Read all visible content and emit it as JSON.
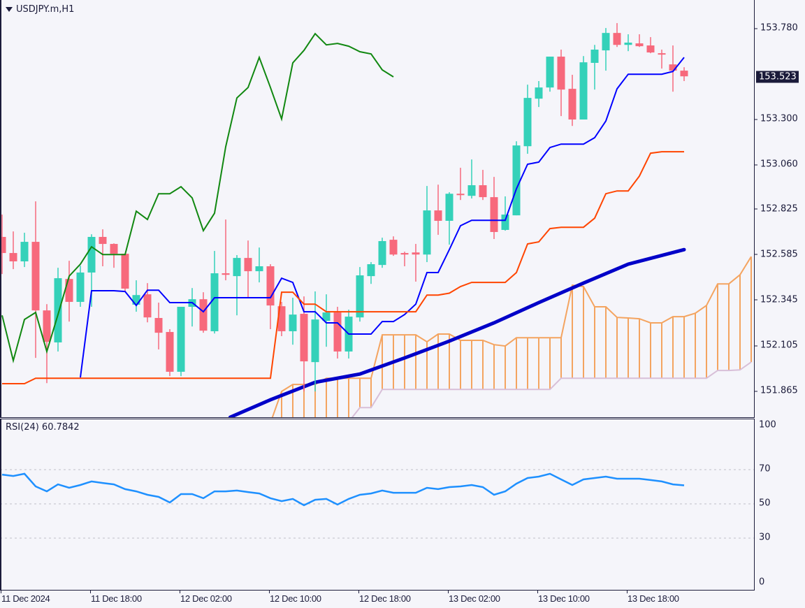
{
  "header": {
    "symbol_title": "USDJPY.m,H1"
  },
  "colors": {
    "bull": "#34d1b9",
    "bear": "#f7697c",
    "tenkan": "#0000ff",
    "kijun": "#ff4500",
    "chikou": "#118811",
    "ma": "#0000c8",
    "senkou_a": "#f4a460",
    "senkou_b": "#d8bfd8",
    "rsi": "#1e90ff",
    "grid": "#c0c0c8",
    "axis": "#1b1b3a"
  },
  "chart_data": [
    {
      "type": "candlestick",
      "title": "USDJPY.m,H1",
      "timeframe": "H1",
      "ylim": [
        151.725,
        153.928
      ],
      "y_tick_labels": [
        "153.780",
        "153.300",
        "153.060",
        "152.825",
        "152.585",
        "152.345",
        "152.105",
        "151.865"
      ],
      "y_tick_values": [
        153.78,
        153.3,
        153.06,
        152.825,
        152.585,
        152.345,
        152.105,
        151.865
      ],
      "current_price": "153.523",
      "current_price_value": 153.523,
      "x_tick_labels": [
        "11 Dec 2024",
        "11 Dec 18:00",
        "12 Dec 02:00",
        "12 Dec 10:00",
        "12 Dec 18:00",
        "13 Dec 02:00",
        "13 Dec 10:00",
        "13 Dec 18:00"
      ],
      "x_tick_bars": [
        0,
        8,
        16,
        24,
        32,
        40,
        48,
        56
      ],
      "candles_ohlc": [
        [
          152.677,
          152.795,
          152.481,
          152.592
        ],
        [
          152.592,
          152.706,
          152.507,
          152.548
        ],
        [
          152.548,
          152.699,
          152.518,
          152.651
        ],
        [
          152.651,
          152.865,
          152.038,
          152.289
        ],
        [
          152.289,
          152.322,
          151.905,
          152.123
        ],
        [
          152.12,
          152.514,
          152.072,
          152.459
        ],
        [
          152.455,
          152.551,
          152.23,
          152.334
        ],
        [
          152.334,
          152.525,
          152.308,
          152.489
        ],
        [
          152.489,
          152.691,
          152.308,
          152.677
        ],
        [
          152.677,
          152.717,
          152.522,
          152.64
        ],
        [
          152.64,
          152.643,
          152.514,
          152.588
        ],
        [
          152.588,
          152.588,
          152.389,
          152.404
        ],
        [
          152.319,
          152.448,
          152.282,
          152.37
        ],
        [
          152.374,
          152.433,
          152.226,
          152.252
        ],
        [
          152.249,
          152.33,
          152.083,
          152.171
        ],
        [
          152.175,
          152.19,
          151.942,
          151.965
        ],
        [
          151.965,
          152.308,
          151.942,
          152.308
        ],
        [
          152.308,
          152.407,
          152.204,
          152.348
        ],
        [
          152.348,
          152.385,
          152.171,
          152.182
        ],
        [
          152.179,
          152.603,
          152.167,
          152.485
        ],
        [
          152.485,
          152.769,
          152.448,
          152.477
        ],
        [
          152.47,
          152.581,
          152.263,
          152.566
        ],
        [
          152.566,
          152.658,
          152.356,
          152.496
        ],
        [
          152.496,
          152.621,
          152.437,
          152.522
        ],
        [
          152.522,
          152.533,
          152.19,
          152.315
        ],
        [
          152.311,
          152.334,
          152.153,
          152.179
        ],
        [
          152.179,
          152.356,
          152.108,
          152.267
        ],
        [
          152.271,
          152.363,
          151.861,
          152.02
        ],
        [
          152.016,
          152.389,
          151.861,
          152.241
        ],
        [
          152.234,
          152.374,
          152.097,
          152.278
        ],
        [
          152.278,
          152.308,
          152.035,
          152.072
        ],
        [
          152.072,
          152.293,
          152.035,
          152.256
        ],
        [
          152.252,
          152.518,
          152.23,
          152.474
        ],
        [
          152.47,
          152.544,
          152.429,
          152.533
        ],
        [
          152.529,
          152.673,
          152.514,
          152.655
        ],
        [
          152.662,
          152.68,
          152.577,
          152.584
        ],
        [
          152.592,
          152.599,
          152.522,
          152.584
        ],
        [
          152.595,
          152.64,
          152.441,
          152.584
        ],
        [
          152.584,
          152.946,
          152.544,
          152.817
        ],
        [
          152.817,
          152.953,
          152.688,
          152.762
        ],
        [
          152.762,
          152.913,
          152.636,
          152.905
        ],
        [
          152.905,
          153.042,
          152.872,
          152.898
        ],
        [
          152.894,
          153.086,
          152.88,
          152.95
        ],
        [
          152.95,
          153.031,
          152.872,
          152.887
        ],
        [
          152.887,
          152.994,
          152.666,
          152.703
        ],
        [
          152.714,
          152.891,
          152.71,
          152.795
        ],
        [
          152.791,
          153.182,
          152.791,
          153.16
        ],
        [
          153.156,
          153.481,
          153.116,
          153.411
        ],
        [
          153.407,
          153.5,
          153.363,
          153.466
        ],
        [
          153.466,
          153.629,
          153.444,
          153.629
        ],
        [
          153.629,
          153.666,
          153.315,
          153.455
        ],
        [
          153.459,
          153.533,
          153.263,
          153.297
        ],
        [
          153.297,
          153.632,
          153.297,
          153.599
        ],
        [
          153.596,
          153.691,
          153.455,
          153.666
        ],
        [
          153.662,
          153.78,
          153.555,
          153.754
        ],
        [
          153.754,
          153.806,
          153.68,
          153.691
        ],
        [
          153.691,
          153.747,
          153.658,
          153.703
        ],
        [
          153.699,
          153.747,
          153.68,
          153.684
        ],
        [
          153.688,
          153.732,
          153.647,
          153.651
        ],
        [
          153.647,
          153.666,
          153.566,
          153.64
        ],
        [
          153.588,
          153.688,
          153.444,
          153.555
        ],
        [
          153.555,
          153.573,
          153.5,
          153.525
        ]
      ],
      "series": [
        {
          "name": "chikou-span",
          "start_bar": 0,
          "values": [
            152.263,
            152.024,
            152.241,
            152.278,
            152.072,
            152.267,
            152.47,
            152.533,
            152.625,
            152.584,
            152.584,
            152.584,
            152.813,
            152.769,
            152.905,
            152.905,
            152.942,
            152.883,
            152.71,
            152.802,
            153.153,
            153.411,
            153.466,
            153.625,
            153.466,
            153.3,
            153.596,
            153.662,
            153.75,
            153.691,
            153.699,
            153.684,
            153.655,
            153.643,
            153.559,
            153.522
          ]
        },
        {
          "name": "tenkan-sen",
          "start_bar": 7,
          "values": [
            151.935,
            152.393,
            152.393,
            152.393,
            152.389,
            152.315,
            152.396,
            152.396,
            152.33,
            152.33,
            152.33,
            152.282,
            152.356,
            152.356,
            152.356,
            152.356,
            152.356,
            152.356,
            152.459,
            152.437,
            152.282,
            152.282,
            152.223,
            152.223,
            152.164,
            152.164,
            152.164,
            152.23,
            152.23,
            152.267,
            152.322,
            152.489,
            152.489,
            152.61,
            152.736,
            152.765,
            152.765,
            152.765,
            152.765,
            152.931,
            153.061,
            153.072,
            153.149,
            153.167,
            153.167,
            153.167,
            153.201,
            153.289,
            153.459,
            153.536,
            153.536,
            153.536,
            153.536,
            153.551,
            153.625
          ]
        },
        {
          "name": "kijun-sen",
          "start_bar": 0,
          "values": [
            151.902,
            151.902,
            151.902,
            151.931,
            151.931,
            151.931,
            151.931,
            151.931,
            151.931,
            151.931,
            151.931,
            151.931,
            151.931,
            151.931,
            151.931,
            151.931,
            151.931,
            151.931,
            151.931,
            151.931,
            151.931,
            151.931,
            151.931,
            151.931,
            151.931,
            152.385,
            152.385,
            152.322,
            152.322,
            152.282,
            152.282,
            152.282,
            152.282,
            152.282,
            152.282,
            152.282,
            152.282,
            152.282,
            152.37,
            152.37,
            152.38,
            152.415,
            152.437,
            152.437,
            152.437,
            152.437,
            152.489,
            152.64,
            152.651,
            152.721,
            152.728,
            152.728,
            152.728,
            152.776,
            152.905,
            152.92,
            152.92,
            152.998,
            153.119,
            153.127,
            153.127,
            153.127
          ]
        },
        {
          "name": "moving-average",
          "points": [
            [
              20.4,
              151.725
            ],
            [
              24,
              151.817
            ],
            [
              28,
              151.909
            ],
            [
              32,
              151.953
            ],
            [
              36,
              152.038
            ],
            [
              40,
              152.127
            ],
            [
              44,
              152.223
            ],
            [
              48,
              152.33
            ],
            [
              52,
              152.433
            ],
            [
              56,
              152.533
            ],
            [
              61,
              152.61
            ]
          ]
        }
      ],
      "cloud": {
        "start_bar": 24,
        "senkou_a": [
          151.695,
          151.861,
          151.898,
          151.898,
          151.898,
          151.931,
          151.931,
          151.931,
          151.931,
          151.931,
          152.16,
          152.16,
          152.16,
          152.16,
          152.123,
          152.164,
          152.164,
          152.131,
          152.131,
          152.131,
          152.108,
          152.101,
          152.145,
          152.145,
          152.145,
          152.145,
          152.145,
          152.422,
          152.415,
          152.308,
          152.308,
          152.252,
          152.249,
          152.245,
          152.223,
          152.223,
          152.256,
          152.256,
          152.274,
          152.315,
          152.429,
          152.429,
          152.477,
          152.573
        ],
        "senkou_b": [
          151.55,
          151.58,
          151.6,
          151.62,
          151.64,
          151.66,
          151.68,
          151.7,
          151.776,
          151.776,
          151.872,
          151.872,
          151.872,
          151.872,
          151.872,
          151.872,
          151.872,
          151.872,
          151.872,
          151.872,
          151.872,
          151.872,
          151.872,
          151.872,
          151.872,
          151.872,
          151.931,
          151.931,
          151.931,
          151.931,
          151.931,
          151.931,
          151.931,
          151.931,
          151.931,
          151.931,
          151.931,
          151.931,
          151.931,
          151.931,
          151.972,
          151.972,
          151.975,
          152.016
        ]
      }
    },
    {
      "type": "line",
      "title": "RSI(24) 60.7842",
      "ylim": [
        0,
        100
      ],
      "y_tick_labels": [
        "100",
        "70",
        "50",
        "30",
        "0"
      ],
      "y_tick_values": [
        100,
        70,
        50,
        30,
        0
      ],
      "levels": [
        70,
        50,
        30
      ],
      "values": [
        67.1,
        66.3,
        67.6,
        60.2,
        57.3,
        61.4,
        59.4,
        61.0,
        63.1,
        62.2,
        61.4,
        58.6,
        57.3,
        55.3,
        54.1,
        50.8,
        55.7,
        55.7,
        53.3,
        57.3,
        57.3,
        57.8,
        56.9,
        56.1,
        53.3,
        51.6,
        52.9,
        49.2,
        52.4,
        52.9,
        49.6,
        52.9,
        55.3,
        56.1,
        57.8,
        56.5,
        56.5,
        56.5,
        59.4,
        58.6,
        59.8,
        60.2,
        61.0,
        59.8,
        55.3,
        57.3,
        61.8,
        65.1,
        65.9,
        67.6,
        64.3,
        61.0,
        64.3,
        65.1,
        65.9,
        64.7,
        64.7,
        64.7,
        63.9,
        63.1,
        61.4,
        60.8
      ]
    }
  ]
}
